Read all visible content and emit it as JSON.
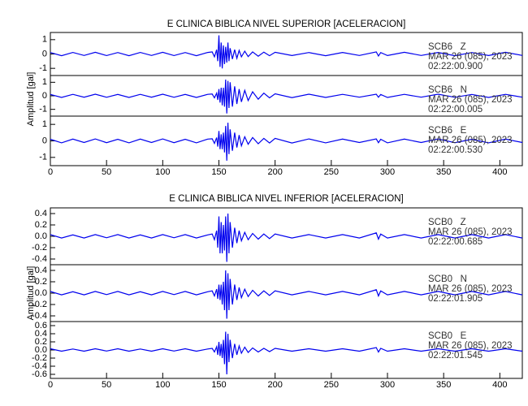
{
  "chart_data": [
    {
      "type": "line",
      "title": "E CLINICA BIBLICA NIVEL SUPERIOR [ACELERACION]",
      "ylabel": "Amplitud [gal]",
      "xlim": [
        0,
        420
      ],
      "xticks": [
        0,
        50,
        100,
        150,
        200,
        250,
        300,
        350,
        400
      ],
      "x": [
        0,
        10,
        20,
        30,
        40,
        50,
        60,
        70,
        80,
        90,
        100,
        110,
        120,
        130,
        140,
        144,
        146,
        148,
        149,
        150,
        151,
        152,
        153,
        154,
        155,
        156,
        157,
        158,
        159,
        160,
        162,
        164,
        166,
        168,
        170,
        173,
        176,
        180,
        185,
        190,
        195,
        200,
        215,
        230,
        245,
        260,
        275,
        290,
        292,
        294,
        300,
        315,
        330,
        345,
        360,
        375,
        390,
        405,
        420
      ],
      "series": [
        {
          "name": "SCB6   Z",
          "date": "MAR 26 (085), 2023",
          "time": "02:22:00.900",
          "color": "#0000ee",
          "ylim": [
            -1.5,
            1.5
          ],
          "yticks": [
            -1,
            0,
            1
          ],
          "values": [
            0.1,
            -0.12,
            0.11,
            -0.1,
            0.12,
            -0.11,
            0.1,
            -0.12,
            0.11,
            -0.1,
            0.12,
            -0.11,
            0.1,
            -0.12,
            0.11,
            0.15,
            -0.2,
            0.3,
            -0.5,
            1.3,
            -0.9,
            0.8,
            -1.0,
            0.6,
            -0.7,
            0.5,
            -0.6,
            0.8,
            -0.5,
            0.4,
            -0.35,
            0.3,
            -0.3,
            0.25,
            -0.2,
            0.2,
            -0.18,
            0.15,
            -0.15,
            0.13,
            -0.12,
            0.12,
            -0.11,
            0.1,
            -0.12,
            0.11,
            -0.1,
            0.15,
            -0.14,
            0.1,
            -0.11,
            0.12,
            -0.1,
            0.11,
            -0.12,
            0.1,
            -0.11,
            0.12,
            -0.1
          ]
        },
        {
          "name": "SCB6   N",
          "date": "MAR 26 (085), 2023",
          "time": "02:22:00.005",
          "color": "#0000ee",
          "ylim": [
            -1.5,
            1.5
          ],
          "yticks": [
            -1,
            0,
            1
          ],
          "values": [
            0.1,
            -0.12,
            0.11,
            -0.1,
            0.12,
            -0.11,
            0.1,
            -0.12,
            0.11,
            -0.1,
            0.12,
            -0.11,
            0.1,
            -0.12,
            0.11,
            0.13,
            -0.15,
            0.2,
            -0.3,
            0.5,
            -0.5,
            0.6,
            -0.7,
            0.6,
            -0.8,
            1.2,
            -1.3,
            1.1,
            -0.9,
            1.0,
            -0.8,
            0.7,
            -0.6,
            0.5,
            -0.45,
            0.4,
            -0.35,
            0.3,
            -0.25,
            0.2,
            -0.15,
            0.15,
            -0.13,
            0.12,
            -0.12,
            0.11,
            -0.1,
            0.12,
            -0.11,
            0.1,
            -0.12,
            0.11,
            -0.1,
            0.12,
            -0.11,
            0.1,
            -0.12,
            0.11,
            -0.1
          ]
        },
        {
          "name": "SCB6   E",
          "date": "MAR 26 (085), 2023",
          "time": "02:22:00.530",
          "color": "#0000ee",
          "ylim": [
            -1.5,
            1.5
          ],
          "yticks": [
            -1,
            0,
            1
          ],
          "values": [
            0.1,
            -0.12,
            0.11,
            -0.1,
            0.12,
            -0.11,
            0.1,
            -0.12,
            0.11,
            -0.1,
            0.12,
            -0.11,
            0.1,
            -0.12,
            0.11,
            0.13,
            -0.15,
            0.2,
            -0.35,
            0.6,
            -0.5,
            0.4,
            -0.5,
            0.5,
            -0.7,
            0.9,
            -1.2,
            1.1,
            -0.8,
            0.7,
            -0.6,
            0.5,
            -0.4,
            0.35,
            -0.3,
            0.25,
            -0.2,
            0.2,
            -0.17,
            0.15,
            -0.13,
            0.15,
            -0.13,
            0.12,
            -0.12,
            0.11,
            -0.1,
            0.12,
            -0.11,
            0.1,
            -0.12,
            0.11,
            -0.1,
            0.12,
            -0.11,
            0.1,
            -0.12,
            0.11,
            -0.1
          ]
        }
      ]
    },
    {
      "type": "line",
      "title": "E CLINICA BIBLICA NIVEL INFERIOR [ACELERACION]",
      "ylabel": "Amplitud [gal]",
      "xlim": [
        0,
        420
      ],
      "xticks": [
        0,
        50,
        100,
        150,
        200,
        250,
        300,
        350,
        400
      ],
      "x": [
        0,
        10,
        20,
        30,
        40,
        50,
        60,
        70,
        80,
        90,
        100,
        110,
        120,
        130,
        140,
        144,
        146,
        148,
        149,
        150,
        151,
        152,
        153,
        154,
        155,
        156,
        157,
        158,
        159,
        160,
        162,
        164,
        166,
        168,
        170,
        173,
        176,
        180,
        185,
        190,
        195,
        200,
        215,
        230,
        245,
        260,
        275,
        290,
        292,
        294,
        300,
        315,
        330,
        345,
        360,
        375,
        390,
        405,
        420
      ],
      "series": [
        {
          "name": "SCB0   Z",
          "date": "MAR 26 (085), 2023",
          "time": "02:22:00.685",
          "color": "#0000ee",
          "ylim": [
            -0.5,
            0.5
          ],
          "yticks": [
            -0.4,
            -0.2,
            {
              "value": 0,
              "label": "0.0"
            },
            0.2,
            0.4
          ],
          "values": [
            0.03,
            -0.03,
            0.025,
            -0.03,
            0.03,
            -0.025,
            0.03,
            -0.03,
            0.025,
            -0.03,
            0.03,
            -0.025,
            0.03,
            -0.03,
            0.025,
            0.04,
            -0.06,
            0.1,
            -0.2,
            0.35,
            -0.3,
            0.25,
            -0.3,
            0.2,
            -0.25,
            0.35,
            -0.45,
            0.4,
            -0.3,
            0.25,
            -0.2,
            0.15,
            -0.12,
            0.1,
            -0.08,
            0.07,
            -0.06,
            0.05,
            -0.05,
            0.04,
            -0.04,
            0.04,
            -0.03,
            0.03,
            -0.03,
            0.03,
            -0.03,
            0.06,
            -0.05,
            0.04,
            -0.03,
            0.03,
            -0.03,
            0.03,
            -0.03,
            0.03,
            -0.03,
            0.03,
            -0.03
          ]
        },
        {
          "name": "SCB0   N",
          "date": "MAR 26 (085), 2023",
          "time": "02:22:01.905",
          "color": "#0000ee",
          "ylim": [
            -0.5,
            0.5
          ],
          "yticks": [
            -0.4,
            -0.2,
            {
              "value": 0,
              "label": "0.0"
            },
            0.2,
            0.4
          ],
          "values": [
            0.03,
            -0.03,
            0.025,
            -0.03,
            0.03,
            -0.025,
            0.03,
            -0.03,
            0.025,
            -0.03,
            0.03,
            -0.025,
            0.03,
            -0.03,
            0.025,
            0.04,
            -0.05,
            0.07,
            -0.1,
            0.15,
            -0.12,
            0.15,
            -0.2,
            0.2,
            -0.3,
            0.4,
            -0.45,
            0.35,
            -0.3,
            0.25,
            -0.2,
            0.15,
            -0.12,
            0.1,
            -0.08,
            0.07,
            -0.06,
            0.05,
            -0.05,
            0.04,
            -0.04,
            0.04,
            -0.03,
            0.03,
            -0.03,
            0.03,
            -0.03,
            0.06,
            -0.05,
            0.04,
            -0.03,
            0.03,
            -0.03,
            0.03,
            -0.03,
            0.03,
            -0.03,
            0.03,
            -0.03
          ]
        },
        {
          "name": "SCB0   E",
          "date": "MAR 26 (085), 2023",
          "time": "02:22:01.545",
          "color": "#0000ee",
          "ylim": [
            -0.7,
            0.7
          ],
          "yticks": [
            -0.6,
            -0.4,
            -0.2,
            {
              "value": 0,
              "label": "0.0"
            },
            0.2,
            0.4,
            0.6
          ],
          "values": [
            0.03,
            -0.03,
            0.025,
            -0.03,
            0.03,
            -0.025,
            0.03,
            -0.03,
            0.025,
            -0.03,
            0.03,
            -0.025,
            0.03,
            -0.03,
            0.025,
            0.04,
            -0.05,
            0.08,
            -0.12,
            0.2,
            -0.15,
            0.15,
            -0.2,
            0.25,
            -0.35,
            0.45,
            -0.6,
            0.4,
            -0.3,
            0.25,
            -0.2,
            0.15,
            -0.12,
            0.1,
            -0.08,
            0.07,
            -0.06,
            0.05,
            -0.05,
            0.04,
            -0.04,
            0.04,
            -0.03,
            0.03,
            -0.03,
            0.03,
            -0.03,
            0.06,
            -0.05,
            0.04,
            -0.03,
            0.03,
            -0.03,
            0.03,
            -0.03,
            0.03,
            -0.03,
            0.03,
            -0.03
          ]
        }
      ]
    }
  ]
}
